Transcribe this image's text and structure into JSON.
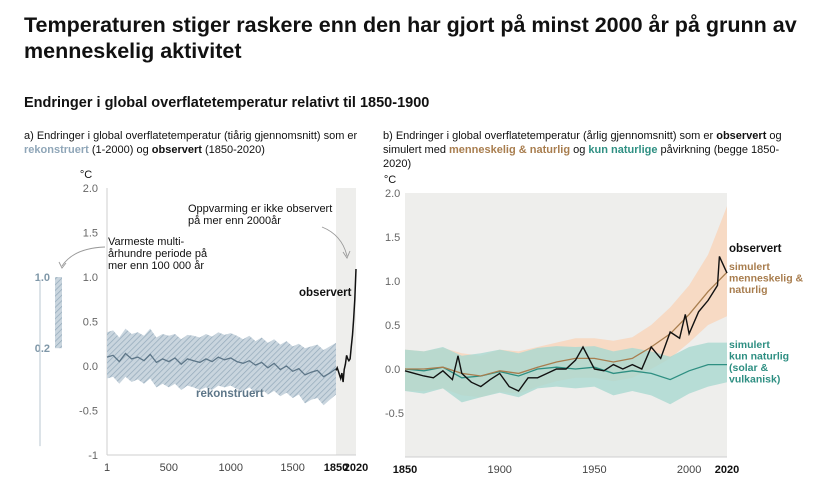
{
  "title": "Temperaturen stiger raskere enn den har gjort på minst 2000 år på grunn av menneskelig aktivitet",
  "subtitle": "Endringer i global overflatetemperatur relativt til 1850-1900",
  "caption_a": {
    "part1": "a) Endringer i global overflatetemperatur (tiårig gjennomsnitt) som er ",
    "recon": "rekonstruert",
    "part2": " (1-2000) og ",
    "obs": "observert",
    "part3": " (1850-2020)"
  },
  "caption_b": {
    "part1": "b) Endringer i global overflatetemperatur (årlig gjennomsnitt) som er ",
    "obs": "observert",
    "part2": " og simulert med ",
    "hum": "menneskelig & naturlig",
    "part3": " og ",
    "nat": "kun naturlige",
    "part4": " påvirkning (begge 1850-2020)"
  },
  "colors": {
    "recon": "#8fa6b8",
    "observed": "#111111",
    "human": "#a87d4e",
    "human_band": "#f7d8c2",
    "natural": "#2e8f82",
    "natural_band": "#a9d8d1",
    "shade": "#eeeeec"
  },
  "chart_data": [
    {
      "id": "a",
      "type": "line",
      "unit": "°C",
      "ylim": [
        -1,
        2
      ],
      "yticks": [
        -1,
        -0.5,
        0,
        0.5,
        1,
        1.5,
        2
      ],
      "ytick_labels": [
        "-1",
        "-0.5",
        "0.0",
        "0.5",
        "1.0",
        "1.5",
        "2.0"
      ],
      "xticks": [
        1,
        500,
        1000,
        1500,
        1850,
        2020
      ],
      "xtick_labels": [
        "1",
        "500",
        "1000",
        "1500",
        "1850",
        "2020"
      ],
      "reconstructed": {
        "name": "rekonstruert",
        "x": [
          1,
          50,
          100,
          150,
          200,
          250,
          300,
          350,
          400,
          450,
          500,
          550,
          600,
          650,
          700,
          750,
          800,
          850,
          900,
          950,
          1000,
          1050,
          1100,
          1150,
          1200,
          1250,
          1300,
          1350,
          1400,
          1450,
          1500,
          1550,
          1600,
          1650,
          1700,
          1750,
          1800,
          1850
        ],
        "y": [
          0.1,
          0.12,
          0.05,
          0.14,
          0.08,
          0.1,
          0.06,
          0.13,
          0.04,
          0.08,
          0.05,
          0.09,
          0.02,
          0.08,
          0.06,
          0.04,
          0.08,
          0.05,
          0.1,
          0.07,
          0.09,
          0.05,
          0.03,
          0.06,
          0.01,
          0.04,
          -0.02,
          0.03,
          -0.04,
          0.0,
          -0.06,
          -0.03,
          -0.1,
          -0.07,
          -0.05,
          -0.12,
          -0.08,
          -0.03
        ],
        "lower": [
          -0.14,
          -0.12,
          -0.2,
          -0.12,
          -0.18,
          -0.15,
          -0.2,
          -0.14,
          -0.24,
          -0.2,
          -0.24,
          -0.2,
          -0.27,
          -0.22,
          -0.24,
          -0.27,
          -0.24,
          -0.27,
          -0.22,
          -0.24,
          -0.22,
          -0.26,
          -0.28,
          -0.24,
          -0.3,
          -0.26,
          -0.32,
          -0.28,
          -0.34,
          -0.3,
          -0.36,
          -0.32,
          -0.42,
          -0.38,
          -0.36,
          -0.44,
          -0.38,
          -0.32
        ],
        "upper": [
          0.38,
          0.4,
          0.32,
          0.42,
          0.36,
          0.38,
          0.34,
          0.42,
          0.32,
          0.36,
          0.34,
          0.36,
          0.3,
          0.35,
          0.34,
          0.32,
          0.36,
          0.33,
          0.38,
          0.35,
          0.37,
          0.34,
          0.3,
          0.34,
          0.28,
          0.32,
          0.26,
          0.3,
          0.24,
          0.28,
          0.22,
          0.25,
          0.2,
          0.22,
          0.24,
          0.18,
          0.22,
          0.26
        ]
      },
      "observed": {
        "name": "observert",
        "x": [
          1850,
          1860,
          1870,
          1880,
          1890,
          1900,
          1910,
          1920,
          1930,
          1940,
          1950,
          1960,
          1970,
          1980,
          1990,
          2000,
          2010,
          2020
        ],
        "y": [
          -0.05,
          -0.02,
          -0.06,
          -0.1,
          -0.14,
          -0.08,
          -0.18,
          -0.04,
          0.02,
          0.12,
          0.08,
          0.06,
          0.08,
          0.22,
          0.35,
          0.52,
          0.75,
          1.09
        ]
      },
      "bar": {
        "low": 0.2,
        "high": 1.0,
        "label_low": "0.2",
        "label_high": "1.0"
      },
      "annotations": {
        "warmest_period": [
          "Varmeste multi-",
          "århundre periode på",
          "mer enn 100 000 år"
        ],
        "unprecedented": [
          "Oppvarming er ikke observert",
          "på mer enn 2000år"
        ],
        "observed_label": "observert",
        "recon_label": "rekonstruert"
      }
    },
    {
      "id": "b",
      "type": "line",
      "unit": "°C",
      "ylim": [
        -1,
        2
      ],
      "yticks": [
        -0.5,
        0,
        0.5,
        1,
        1.5,
        2
      ],
      "ytick_labels": [
        "-0.5",
        "0.0",
        "0.5",
        "1.0",
        "1.5",
        "2.0"
      ],
      "xticks": [
        1850,
        1900,
        1950,
        2000,
        2020
      ],
      "xtick_labels": [
        "1850",
        "1900",
        "1950",
        "2000",
        "2020"
      ],
      "observed": {
        "name": "observert",
        "x": [
          1850,
          1855,
          1860,
          1865,
          1870,
          1875,
          1878,
          1880,
          1885,
          1890,
          1895,
          1900,
          1905,
          1910,
          1915,
          1920,
          1925,
          1930,
          1935,
          1940,
          1944,
          1950,
          1955,
          1960,
          1965,
          1970,
          1975,
          1980,
          1985,
          1990,
          1995,
          1998,
          2000,
          2005,
          2010,
          2015,
          2016,
          2020
        ],
        "y": [
          -0.02,
          -0.05,
          -0.08,
          -0.1,
          -0.02,
          -0.12,
          0.15,
          -0.05,
          -0.15,
          -0.2,
          -0.12,
          -0.05,
          -0.2,
          -0.25,
          -0.1,
          -0.1,
          -0.05,
          0.0,
          0.0,
          0.1,
          0.25,
          0.0,
          -0.02,
          0.05,
          0.0,
          0.05,
          0.0,
          0.25,
          0.12,
          0.42,
          0.35,
          0.62,
          0.4,
          0.65,
          0.78,
          0.95,
          1.28,
          1.09
        ]
      },
      "simulated_human": {
        "name": "simulert menneskelig & naturlig",
        "x": [
          1850,
          1860,
          1870,
          1880,
          1890,
          1900,
          1910,
          1920,
          1930,
          1940,
          1950,
          1960,
          1970,
          1980,
          1990,
          2000,
          2010,
          2020
        ],
        "y": [
          0.0,
          0.0,
          0.02,
          -0.05,
          -0.08,
          -0.02,
          -0.05,
          0.02,
          0.08,
          0.12,
          0.12,
          0.08,
          0.12,
          0.25,
          0.4,
          0.62,
          0.88,
          1.1
        ],
        "lower": [
          -0.25,
          -0.25,
          -0.22,
          -0.3,
          -0.32,
          -0.26,
          -0.28,
          -0.2,
          -0.14,
          -0.1,
          -0.1,
          -0.14,
          -0.1,
          0.0,
          0.12,
          0.3,
          0.5,
          0.6
        ],
        "upper": [
          0.22,
          0.2,
          0.24,
          0.18,
          0.15,
          0.22,
          0.2,
          0.25,
          0.3,
          0.35,
          0.35,
          0.32,
          0.36,
          0.5,
          0.7,
          0.95,
          1.3,
          1.85
        ]
      },
      "simulated_natural": {
        "name": "simulert kun naturlig (solar & vulkanisk)",
        "x": [
          1850,
          1860,
          1870,
          1880,
          1890,
          1900,
          1910,
          1920,
          1930,
          1940,
          1950,
          1960,
          1970,
          1980,
          1990,
          2000,
          2010,
          2020
        ],
        "y": [
          0.0,
          -0.02,
          0.02,
          -0.1,
          -0.08,
          -0.03,
          -0.08,
          0.0,
          0.02,
          0.0,
          0.02,
          -0.05,
          -0.02,
          -0.05,
          -0.12,
          -0.02,
          0.05,
          0.05
        ],
        "lower": [
          -0.25,
          -0.28,
          -0.22,
          -0.38,
          -0.32,
          -0.27,
          -0.32,
          -0.22,
          -0.2,
          -0.22,
          -0.2,
          -0.3,
          -0.25,
          -0.3,
          -0.4,
          -0.28,
          -0.2,
          -0.15
        ],
        "upper": [
          0.22,
          0.2,
          0.25,
          0.15,
          0.18,
          0.22,
          0.18,
          0.24,
          0.26,
          0.25,
          0.26,
          0.2,
          0.24,
          0.2,
          0.14,
          0.25,
          0.3,
          0.3
        ]
      },
      "labels": {
        "observed": "observert",
        "human": [
          "simulert",
          "menneskelig &",
          "naturlig"
        ],
        "natural": [
          "simulert",
          "kun naturlig",
          "(solar &",
          "vulkanisk)"
        ]
      }
    }
  ]
}
